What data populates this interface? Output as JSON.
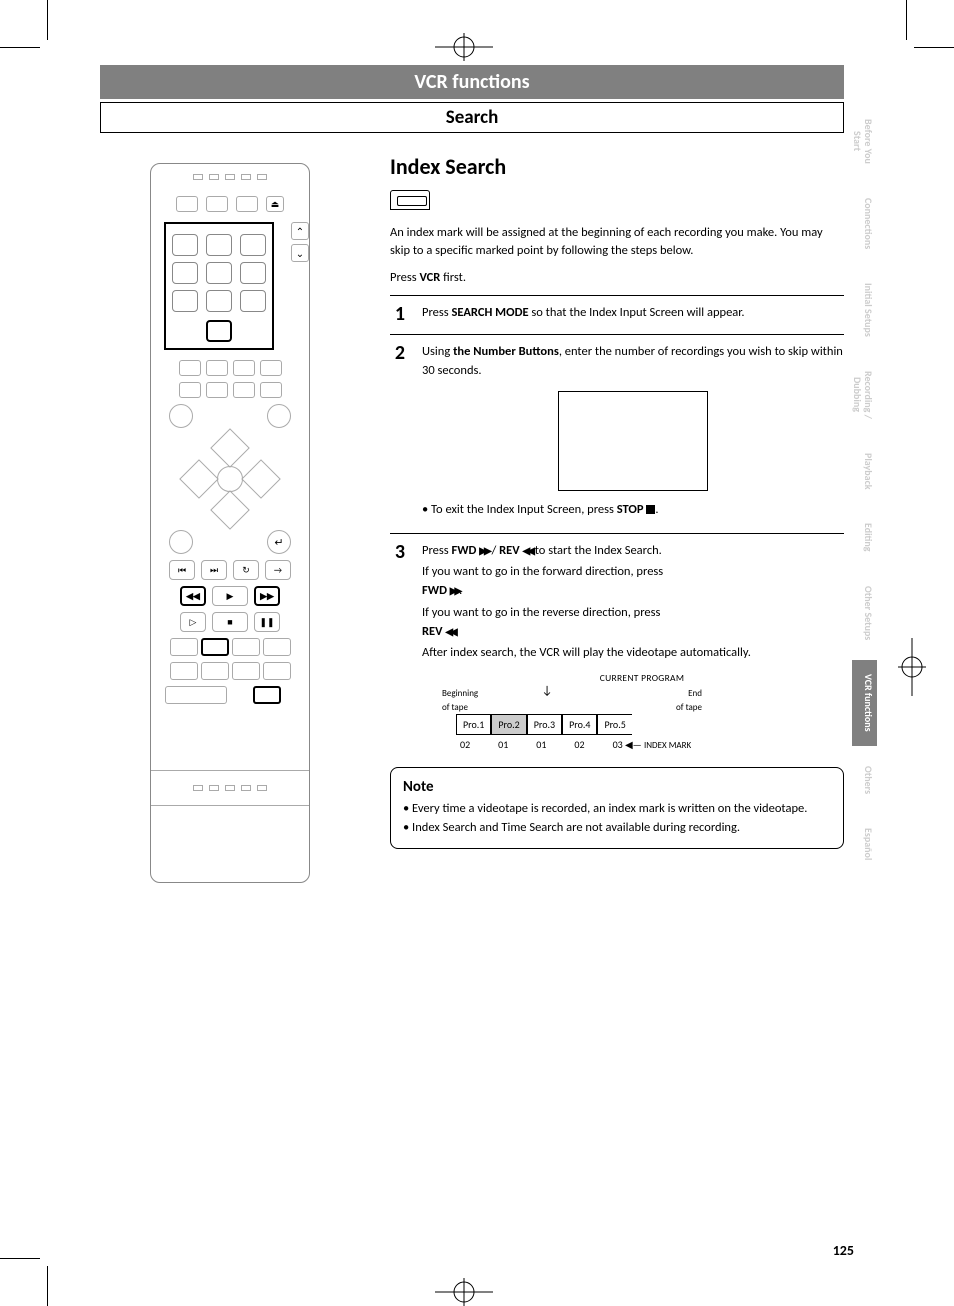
{
  "header": {
    "chapter": "VCR functions",
    "section": "Search"
  },
  "section_title": "Index Search",
  "intro": "An index mark will be assigned at the beginning of each recording you make. You may skip to a specific marked point by following the steps below.",
  "press_first_pre": "Press ",
  "press_first_bold": "VCR",
  "press_first_post": " first.",
  "steps": [
    {
      "n": "1",
      "parts": [
        {
          "t": "Press "
        },
        {
          "t": "SEARCH MODE",
          "b": true
        },
        {
          "t": " so that the Index Input Screen will appear."
        }
      ]
    },
    {
      "n": "2",
      "parts": [
        {
          "t": "Using "
        },
        {
          "t": "the Number Buttons",
          "b": true
        },
        {
          "t": ", enter the number of recordings you wish to skip within 30 seconds."
        }
      ],
      "exit_pre": "• To exit the Index Input Screen, press ",
      "exit_bold": "STOP",
      "exit_post": "."
    },
    {
      "n": "3",
      "l0_pre": "Press ",
      "l0_b1": "FWD ",
      "l0_m": " / ",
      "l0_b2": "REV ",
      "l0_post": " to start the Index Search.",
      "l1": "If you want to go in the forward direction, press ",
      "l1b": "FWD ",
      "l2": "If you want to go in the reverse direction, press ",
      "l2b": "REV ",
      "l3": "After index search, the VCR will play the videotape automatically.",
      "diagram": {
        "cp": "CURRENT PROGRAM",
        "beg": "Beginning\nof tape",
        "end": "End\nof tape",
        "cells": [
          "Pro.1",
          "Pro.2",
          "Pro.3",
          "Pro.4",
          "Pro.5"
        ],
        "marks": [
          "02",
          "01",
          "01",
          "02",
          "03"
        ],
        "im": "INDEX MARK"
      }
    }
  ],
  "note": {
    "title": "Note",
    "items": [
      "• Every time a videotape is recorded, an index mark is written on the videotape.",
      "• Index Search and Time Search are not available during recording."
    ]
  },
  "tabs": [
    {
      "label": "Before You\nStart"
    },
    {
      "label": "Connections"
    },
    {
      "label": "Initial Setups"
    },
    {
      "label": "Recording /\nDubbing"
    },
    {
      "label": "Playback"
    },
    {
      "label": "Editing"
    },
    {
      "label": "Other Setups"
    },
    {
      "label": "VCR functions",
      "active": true
    },
    {
      "label": "Others"
    },
    {
      "label": "Español"
    }
  ],
  "page_number": "125",
  "glyphs": {
    "fwd": "▶▶",
    "rev": "◀◀",
    "left_arrow": "◀—"
  },
  "colors": {
    "header_bg": "#808080",
    "tab_inactive": "#cccccc",
    "tab_active_bg": "#808080"
  }
}
